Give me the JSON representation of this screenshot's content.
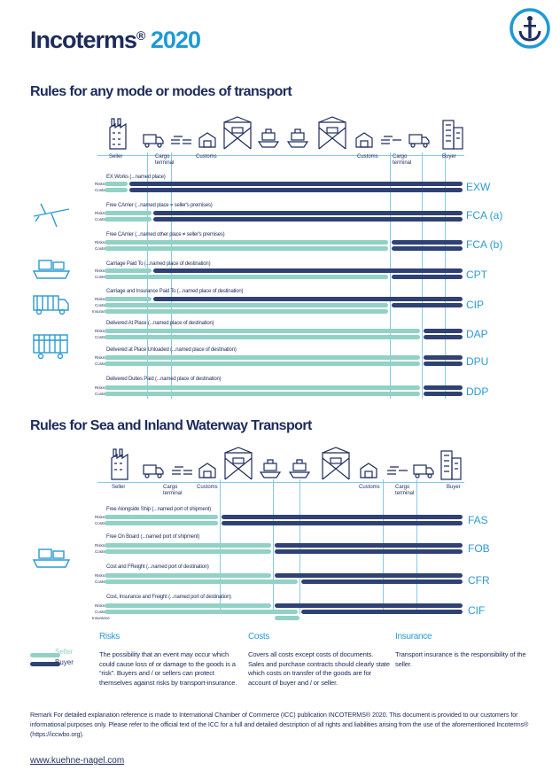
{
  "title": {
    "main": "Incoterms",
    "reg": "®",
    "year": "2020"
  },
  "colors": {
    "seller": "#92d1c6",
    "buyer": "#2f4175",
    "accent": "#2b9ad3",
    "line": "#86c9e8"
  },
  "section1": {
    "title": "Rules for any mode or modes of transport",
    "stages": {
      "seller": "Seller",
      "cargo1": "Cargo terminal",
      "customs1": "Customs",
      "customs2": "Customs",
      "cargo2": "Cargo terminal",
      "buyer": "Buyer"
    },
    "side_icons": [
      "plane-icon",
      "ship-icon",
      "truck-icon",
      "train-icon"
    ],
    "rules": [
      {
        "code": "EXW",
        "name": "EX Works (...named place)",
        "rows": [
          "Risks",
          "Costs"
        ]
      },
      {
        "code": "FCA (a)",
        "name": "Free CArrier (...named place = seller's premises)",
        "rows": [
          "Risks",
          "Costs"
        ]
      },
      {
        "code": "FCA (b)",
        "name": "Free CArrier (...named other place ≠ seller's premises)",
        "rows": [
          "Risks",
          "Costs"
        ]
      },
      {
        "code": "CPT",
        "name": "Carriage Paid To (...named place of destination)",
        "rows": [
          "Risks",
          "Costs"
        ]
      },
      {
        "code": "CIP",
        "name": "Carriage and Insurance Paid To (...named place of destination)",
        "rows": [
          "Risks",
          "Costs",
          "Insurance"
        ]
      },
      {
        "code": "DAP",
        "name": "Delivered At Place (...named place of destination)",
        "rows": [
          "Risks",
          "Costs"
        ]
      },
      {
        "code": "DPU",
        "name": "Delivered at Place Unloaded (...named place of destination)",
        "rows": [
          "Risks",
          "Costs"
        ]
      },
      {
        "code": "DDP",
        "name": "Delivered Duties Paid (...named place of destination)",
        "rows": [
          "Risks",
          "Costs"
        ]
      }
    ]
  },
  "section2": {
    "title": "Rules for Sea and Inland Waterway Transport",
    "stages": {
      "seller": "Seller",
      "cargo1": "Cargo terminal",
      "customs1": "Customs",
      "customs2": "Customs",
      "cargo2": "Cargo terminal",
      "buyer": "Buyer"
    },
    "rules": [
      {
        "code": "FAS",
        "name": "Free Alongside Ship (...named port of shipment)",
        "rows": [
          "Risks",
          "Costs"
        ]
      },
      {
        "code": "FOB",
        "name": "Free On Board (...named port of shipment)",
        "rows": [
          "Risks",
          "Costs"
        ]
      },
      {
        "code": "CFR",
        "name": "Cost and FReight (...named port of destination)",
        "rows": [
          "Risks",
          "Costs"
        ]
      },
      {
        "code": "CIF",
        "name": "Cost, Insurance and Freight (...named port of destination)",
        "rows": [
          "Risks",
          "Costs",
          "Insurance"
        ]
      }
    ]
  },
  "legend": {
    "seller": "Seller",
    "buyer": "Buyer"
  },
  "info": {
    "risks": {
      "title": "Risks",
      "text": "The possibility that an event may occur which could cause loss of or damage to the goods is a “risk”. Buyers and / or sellers can protect themselves against risks by transport-insurance."
    },
    "costs": {
      "title": "Costs",
      "text": "Covers all costs except costs of documents. Sales and purchase contracts should clearly state which costs on transfer of the goods are for account of buyer and / or seller."
    },
    "insurance": {
      "title": "Insurance",
      "text": "Transport insurance is the responsibility of the seller."
    }
  },
  "remark": "Remark For detailed explanation reference is made to International Chamber of Commerce (ICC) publication INCOTERMS® 2020. This document is provided to our customers for informational purposes only. Please refer to the official text of the ICC for a full and detailed description of all rights and liabilities arising from the use of the aforementioned Incoterms® (https://iccwbo.org).",
  "url": "www.kuehne-nagel.com"
}
